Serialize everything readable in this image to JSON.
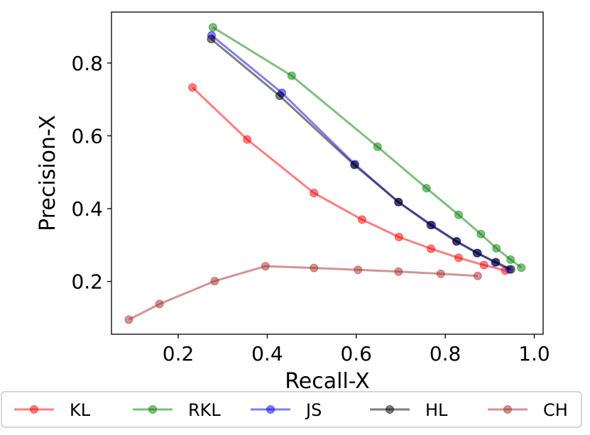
{
  "chart_data": {
    "type": "line",
    "title": "",
    "xlabel": "Recall-X",
    "ylabel": "Precision-X",
    "xlim": [
      0.05,
      1.02
    ],
    "ylim": [
      0.055,
      0.94
    ],
    "xticks": [
      0.2,
      0.4,
      0.6,
      0.8,
      1.0
    ],
    "xtick_labels": [
      "0.2",
      "0.4",
      "0.6",
      "0.8",
      "1.0"
    ],
    "yticks": [
      0.2,
      0.4,
      0.6,
      0.8
    ],
    "ytick_labels": [
      "0.2",
      "0.4",
      "0.6",
      "0.8"
    ],
    "grid": false,
    "legend_position": "bottom, outside",
    "series": [
      {
        "name": "KL",
        "color": "#ff0000",
        "x": [
          0.232,
          0.355,
          0.505,
          0.613,
          0.696,
          0.768,
          0.83,
          0.887,
          0.935
        ],
        "y": [
          0.733,
          0.59,
          0.443,
          0.37,
          0.322,
          0.29,
          0.265,
          0.245,
          0.23
        ]
      },
      {
        "name": "RKL",
        "color": "#008000",
        "x": [
          0.278,
          0.455,
          0.648,
          0.758,
          0.83,
          0.88,
          0.915,
          0.947,
          0.971
        ],
        "y": [
          0.898,
          0.765,
          0.57,
          0.456,
          0.383,
          0.33,
          0.291,
          0.26,
          0.238
        ]
      },
      {
        "name": "JS",
        "color": "#0000ff",
        "x": [
          0.275,
          0.433,
          0.597,
          0.695,
          0.77,
          0.826,
          0.873,
          0.912,
          0.944
        ],
        "y": [
          0.876,
          0.718,
          0.522,
          0.418,
          0.355,
          0.31,
          0.278,
          0.252,
          0.233
        ]
      },
      {
        "name": "HL",
        "color": "#000000",
        "x": [
          0.274,
          0.428,
          0.596,
          0.695,
          0.767,
          0.825,
          0.871,
          0.914,
          0.948
        ],
        "y": [
          0.866,
          0.71,
          0.52,
          0.418,
          0.355,
          0.31,
          0.278,
          0.253,
          0.233
        ]
      },
      {
        "name": "CH",
        "color": "#a52a2a",
        "x": [
          0.089,
          0.158,
          0.282,
          0.396,
          0.505,
          0.604,
          0.695,
          0.79,
          0.873
        ],
        "y": [
          0.095,
          0.138,
          0.201,
          0.242,
          0.237,
          0.232,
          0.227,
          0.221,
          0.215
        ]
      }
    ]
  }
}
